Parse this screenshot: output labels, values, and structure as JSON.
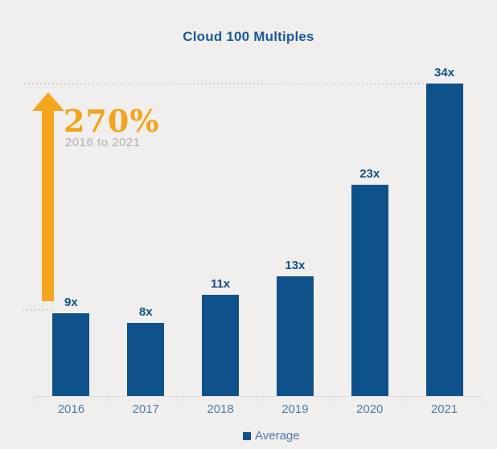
{
  "title": "Cloud 100 Multiples",
  "annotation": {
    "percent": "270%",
    "range": "2016 to 2021"
  },
  "legend": {
    "label": "Average"
  },
  "chart_data": {
    "type": "bar",
    "title": "Cloud 100 Multiples",
    "categories": [
      "2016",
      "2017",
      "2018",
      "2019",
      "2020",
      "2021"
    ],
    "series": [
      {
        "name": "Average",
        "values": [
          9,
          8,
          11,
          13,
          23,
          34
        ]
      }
    ],
    "bar_labels": [
      "9x",
      "8x",
      "11x",
      "13x",
      "23x",
      "34x"
    ],
    "xlabel": "",
    "ylabel": "",
    "ylim": [
      0,
      34
    ],
    "grid": false,
    "legend_position": "bottom",
    "annotations": [
      {
        "text": "270%",
        "note": "2016 to 2021",
        "type": "growth-arrow",
        "from_value": 9,
        "to_value": 34
      }
    ],
    "reference_lines": [
      {
        "value": 34,
        "style": "dotted"
      },
      {
        "value": 9,
        "style": "dotted"
      }
    ]
  },
  "colors": {
    "background": "#F0EFED",
    "bar": "#0F528B",
    "value_label": "#0F528B",
    "title": "#1A5A9B",
    "axis_label": "#4E7CA9",
    "axis_line": "#DDDCDA",
    "arrow": "#F6A51E",
    "percent_text": "#F2A41D",
    "range_text": "#B2B1B1",
    "dotted_line": "#C9D2DA"
  }
}
